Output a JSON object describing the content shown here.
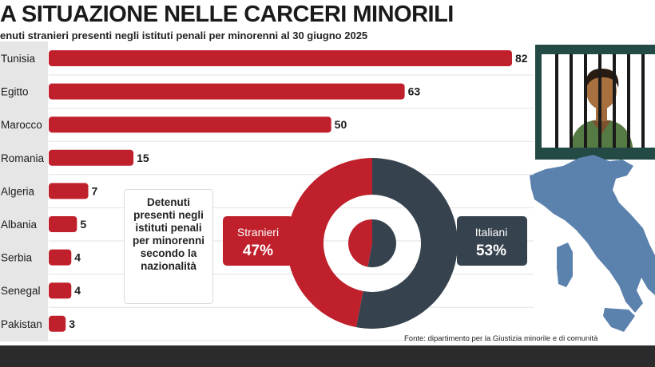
{
  "header": {
    "title": "A SITUAZIONE NELLE CARCERI MINORILI",
    "subtitle": "enuti stranieri presenti negli istituti penali per minorenni al 30 giugno 2025"
  },
  "chart_data": [
    {
      "type": "bar",
      "orientation": "horizontal",
      "categories": [
        "Tunisia",
        "Egitto",
        "Marocco",
        "Romania",
        "Algeria",
        "Albania",
        "Serbia",
        "Senegal",
        "Pakistan"
      ],
      "values": [
        82,
        63,
        50,
        15,
        7,
        5,
        4,
        4,
        3
      ],
      "value_labels": [
        "82",
        "63",
        "50",
        "15",
        "7",
        "5",
        "4",
        "4",
        "3"
      ],
      "color": "#c0202b",
      "grid": false,
      "legend": "none"
    },
    {
      "type": "pie",
      "style": "donut",
      "slices": [
        {
          "name": "Stranieri",
          "value": 47,
          "label": "47%",
          "color": "#c0202b"
        },
        {
          "name": "Italiani",
          "value": 53,
          "label": "53%",
          "color": "#36434e"
        }
      ],
      "legend": "none"
    }
  ],
  "info_box": {
    "text": "Detenuti presenti negli istituti penali per minorenni secondo la nazionalità"
  },
  "source": "Fonte: dipartimento per la Giustizia minorile e di comunità",
  "colors": {
    "bar": "#c0202b",
    "stranieri": "#c0202b",
    "italiani": "#36434e",
    "label_column": "#e6e6e6",
    "map": "#5b82ad",
    "footer": "#2b2b2b"
  },
  "illustrations": [
    "prison-bars-figure-icon",
    "italy-map-icon"
  ]
}
